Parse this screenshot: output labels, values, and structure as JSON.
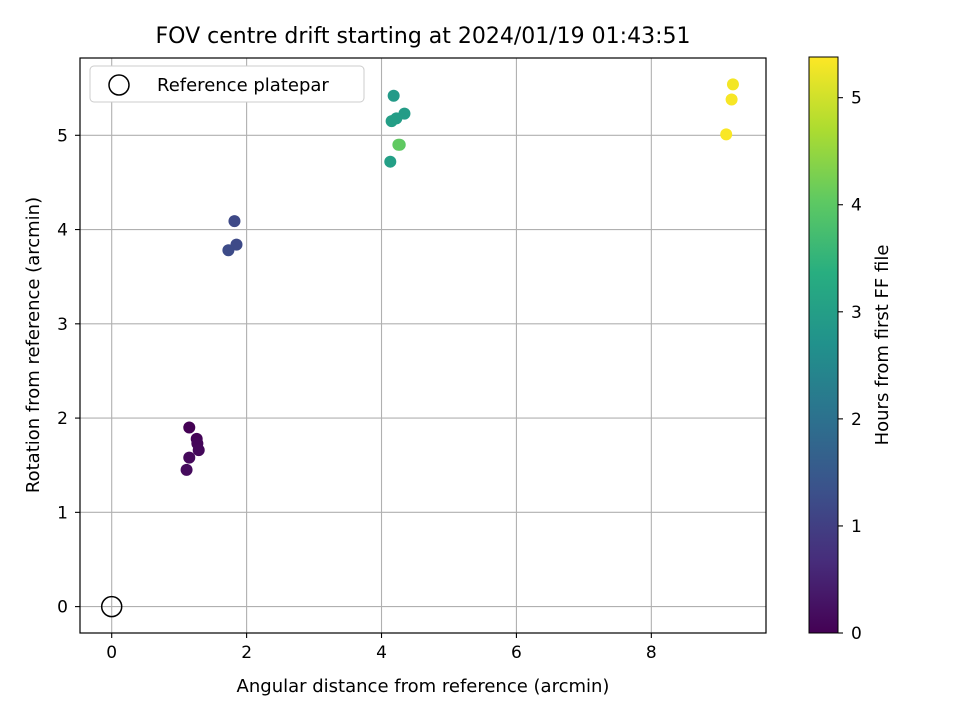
{
  "chart_data": {
    "type": "scatter",
    "title": "FOV centre drift starting at 2024/01/19 01:43:51",
    "xlabel": "Angular distance from reference (arcmin)",
    "ylabel": "Rotation from reference (arcmin)",
    "xlim": [
      -0.47,
      9.7
    ],
    "ylim": [
      -0.28,
      5.82
    ],
    "xticks": [
      0,
      2,
      4,
      6,
      8
    ],
    "yticks": [
      0,
      1,
      2,
      3,
      4,
      5
    ],
    "grid": true,
    "legend": {
      "placement": "top-left",
      "entries": [
        "Reference platepar"
      ]
    },
    "reference_point": {
      "name": "Reference platepar",
      "x": 0,
      "y": 0
    },
    "colorbar": {
      "label": "Hours from first FF file",
      "min": 0,
      "max": 5.38,
      "ticks": [
        0,
        1,
        2,
        3,
        4,
        5
      ],
      "colormap": "viridis"
    },
    "points": [
      {
        "x": 1.15,
        "y": 1.9,
        "c": 0.0
      },
      {
        "x": 1.26,
        "y": 1.78,
        "c": 0.05
      },
      {
        "x": 1.27,
        "y": 1.73,
        "c": 0.08
      },
      {
        "x": 1.29,
        "y": 1.66,
        "c": 0.1
      },
      {
        "x": 1.15,
        "y": 1.58,
        "c": 0.12
      },
      {
        "x": 1.11,
        "y": 1.45,
        "c": 0.15
      },
      {
        "x": 1.82,
        "y": 4.09,
        "c": 1.18
      },
      {
        "x": 1.85,
        "y": 3.84,
        "c": 1.2
      },
      {
        "x": 1.73,
        "y": 3.78,
        "c": 1.22
      },
      {
        "x": 4.18,
        "y": 5.42,
        "c": 2.9
      },
      {
        "x": 4.34,
        "y": 5.23,
        "c": 2.95
      },
      {
        "x": 4.22,
        "y": 5.18,
        "c": 2.97
      },
      {
        "x": 4.15,
        "y": 5.15,
        "c": 3.0
      },
      {
        "x": 4.13,
        "y": 4.72,
        "c": 3.02
      },
      {
        "x": 4.27,
        "y": 4.9,
        "c": 4.0
      },
      {
        "x": 4.25,
        "y": 4.9,
        "c": 4.05
      },
      {
        "x": 9.21,
        "y": 5.54,
        "c": 5.3
      },
      {
        "x": 9.19,
        "y": 5.38,
        "c": 5.33
      },
      {
        "x": 9.11,
        "y": 5.01,
        "c": 5.35
      }
    ]
  }
}
